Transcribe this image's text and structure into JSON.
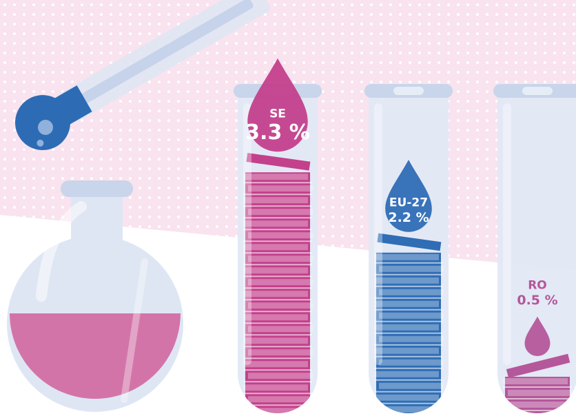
{
  "chart_data": {
    "type": "bar",
    "categories": [
      "SE",
      "EU-27",
      "RO"
    ],
    "values": [
      3.3,
      2.2,
      0.5
    ],
    "value_labels": [
      "3.3 %",
      "2.2 %",
      "0.5 %"
    ],
    "colors": [
      "#c3408c",
      "#2f6db5",
      "#b5579b"
    ]
  }
}
